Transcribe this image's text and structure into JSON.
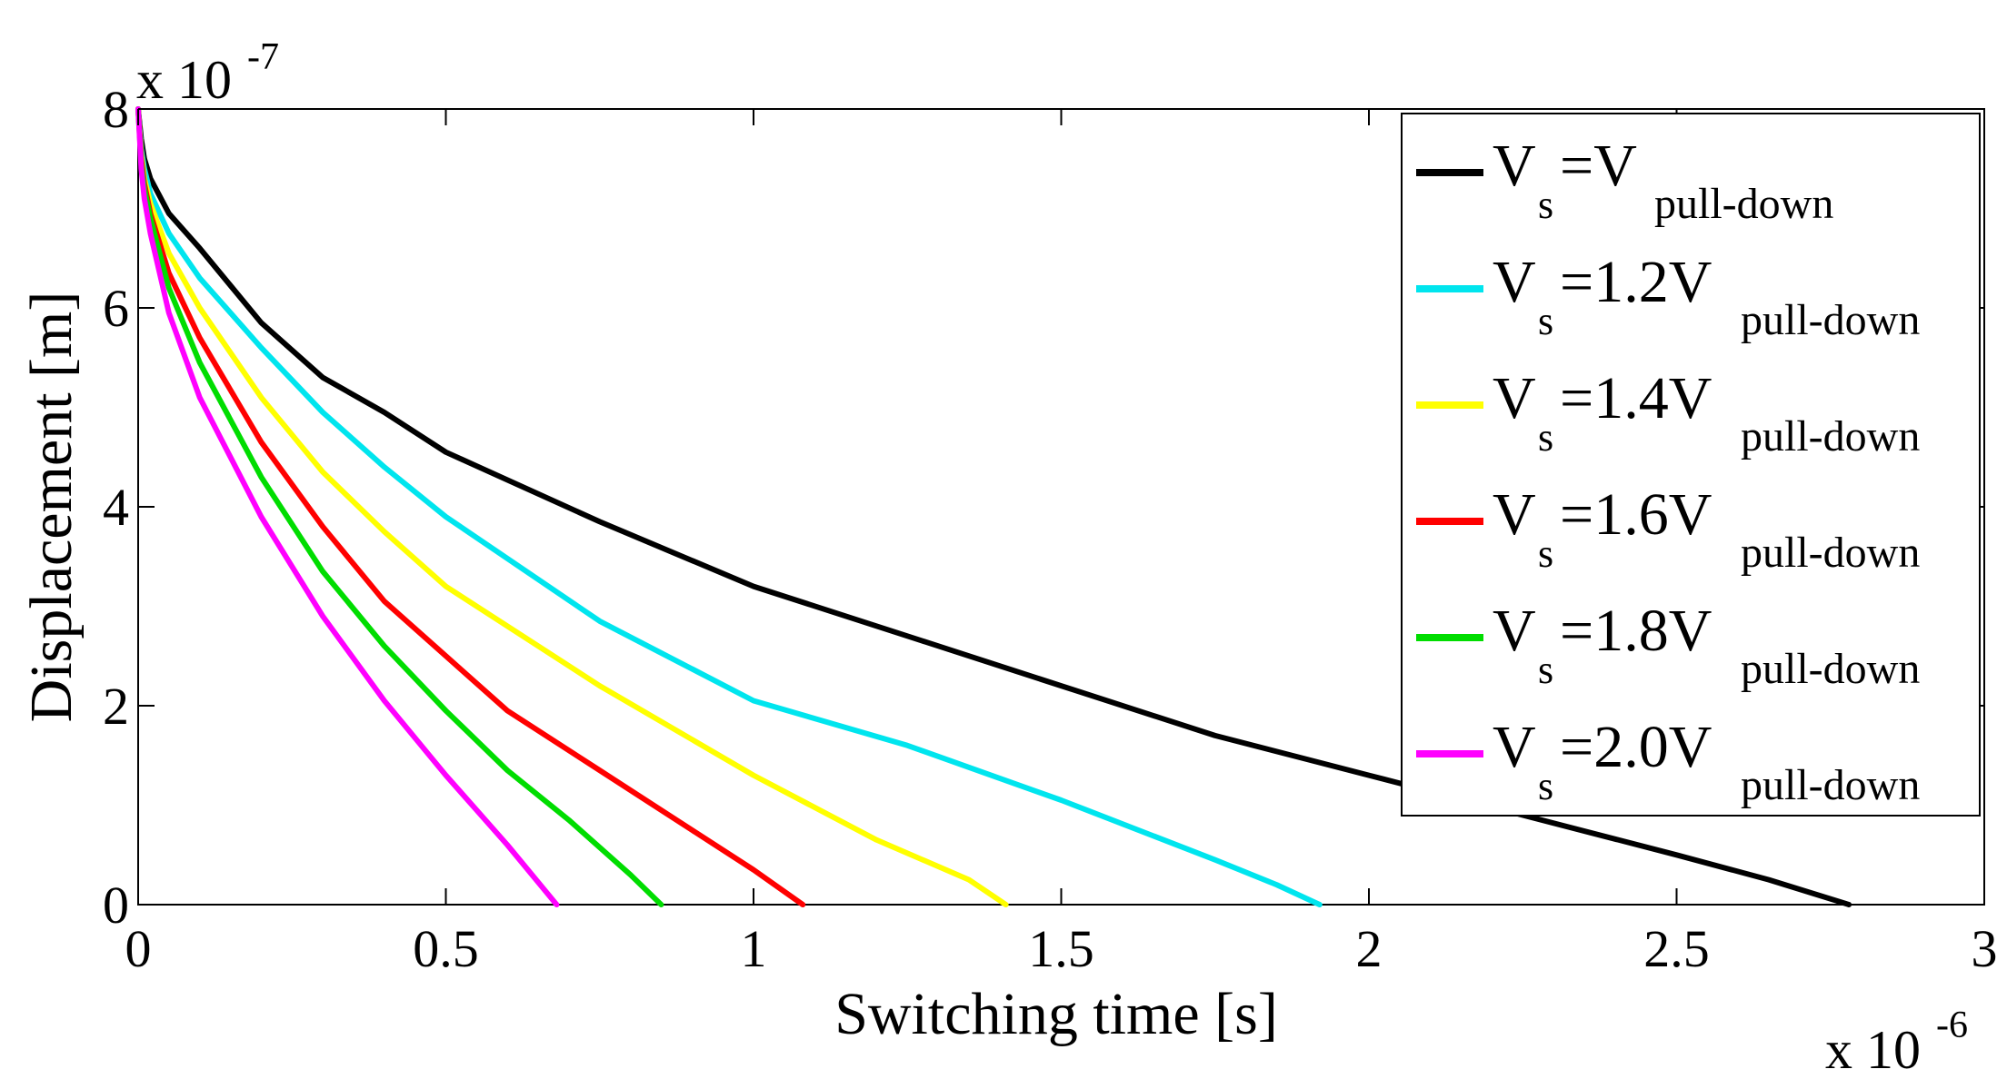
{
  "chart_data": {
    "type": "line",
    "title": "",
    "xlabel": "Switching time [s]",
    "ylabel": "Displacement [m]",
    "x_multiplier": "x 10",
    "x_multiplier_exp": "-6",
    "y_multiplier": "x 10",
    "y_multiplier_exp": "-7",
    "xlim": [
      0,
      3
    ],
    "ylim": [
      0,
      8
    ],
    "x_ticks": [
      "0",
      "0.5",
      "1",
      "1.5",
      "2",
      "2.5",
      "3"
    ],
    "y_ticks": [
      "0",
      "2",
      "4",
      "6",
      "8"
    ],
    "grid": false,
    "legend_position": "top-right",
    "series": [
      {
        "name": "V_s=V_pull-down",
        "label_main": "V",
        "label_sub": "s",
        "label_mid": "=V",
        "label_tail": "pull-down",
        "color": "#000000",
        "x": [
          0,
          0.005,
          0.01,
          0.02,
          0.05,
          0.1,
          0.2,
          0.3,
          0.4,
          0.5,
          0.75,
          1.0,
          1.25,
          1.5,
          1.75,
          2.0,
          2.25,
          2.5,
          2.65,
          2.78
        ],
        "y": [
          8.0,
          7.7,
          7.5,
          7.3,
          6.95,
          6.6,
          5.85,
          5.3,
          4.95,
          4.55,
          3.85,
          3.2,
          2.7,
          2.2,
          1.7,
          1.3,
          0.9,
          0.5,
          0.25,
          0.0
        ]
      },
      {
        "name": "V_s=1.2V_pull-down",
        "label_main": "V",
        "label_sub": "s",
        "label_mid": "=1.2V",
        "label_tail": "pull-down",
        "color": "#00e5ee",
        "x": [
          0,
          0.005,
          0.01,
          0.02,
          0.05,
          0.1,
          0.2,
          0.3,
          0.4,
          0.5,
          0.75,
          1.0,
          1.25,
          1.5,
          1.75,
          1.85,
          1.92
        ],
        "y": [
          8.0,
          7.6,
          7.4,
          7.15,
          6.75,
          6.3,
          5.6,
          4.95,
          4.4,
          3.9,
          2.85,
          2.05,
          1.6,
          1.05,
          0.45,
          0.2,
          0.0
        ]
      },
      {
        "name": "V_s=1.4V_pull-down",
        "label_main": "V",
        "label_sub": "s",
        "label_mid": "=1.4V",
        "label_tail": "pull-down",
        "color": "#ffff00",
        "x": [
          0,
          0.005,
          0.01,
          0.02,
          0.05,
          0.1,
          0.2,
          0.3,
          0.4,
          0.5,
          0.75,
          1.0,
          1.2,
          1.35,
          1.41
        ],
        "y": [
          8.0,
          7.55,
          7.3,
          7.05,
          6.55,
          6.0,
          5.1,
          4.35,
          3.75,
          3.2,
          2.2,
          1.3,
          0.65,
          0.25,
          0.0
        ]
      },
      {
        "name": "V_s=1.6V_pull-down",
        "label_main": "V",
        "label_sub": "s",
        "label_mid": "=1.6V",
        "label_tail": "pull-down",
        "color": "#ff0000",
        "x": [
          0,
          0.005,
          0.01,
          0.02,
          0.05,
          0.1,
          0.2,
          0.3,
          0.4,
          0.5,
          0.6,
          0.75,
          0.9,
          1.0,
          1.08
        ],
        "y": [
          8.0,
          7.5,
          7.25,
          6.95,
          6.35,
          5.7,
          4.65,
          3.8,
          3.05,
          2.5,
          1.95,
          1.35,
          0.75,
          0.35,
          0.0
        ]
      },
      {
        "name": "V_s=1.8V_pull-down",
        "label_main": "V",
        "label_sub": "s",
        "label_mid": "=1.8V",
        "label_tail": "pull-down",
        "color": "#00dd00",
        "x": [
          0,
          0.005,
          0.01,
          0.02,
          0.05,
          0.1,
          0.2,
          0.3,
          0.4,
          0.5,
          0.6,
          0.7,
          0.8,
          0.85
        ],
        "y": [
          8.0,
          7.45,
          7.2,
          6.9,
          6.2,
          5.45,
          4.3,
          3.35,
          2.6,
          1.95,
          1.35,
          0.85,
          0.3,
          0.0
        ]
      },
      {
        "name": "V_s=2.0V_pull-down",
        "label_main": "V",
        "label_sub": "s",
        "label_mid": "=2.0V",
        "label_tail": "pull-down",
        "color": "#ff00ff",
        "x": [
          0,
          0.005,
          0.01,
          0.02,
          0.05,
          0.1,
          0.2,
          0.3,
          0.4,
          0.5,
          0.6,
          0.68
        ],
        "y": [
          8.0,
          7.4,
          7.1,
          6.75,
          5.95,
          5.1,
          3.9,
          2.9,
          2.05,
          1.3,
          0.6,
          0.0
        ]
      }
    ]
  }
}
